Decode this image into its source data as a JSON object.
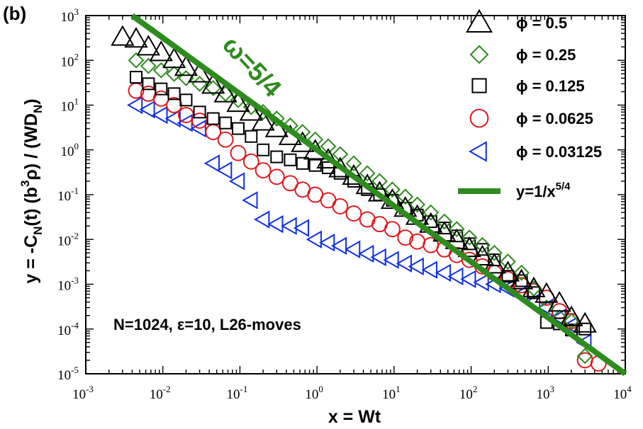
{
  "chart_data": {
    "type": "scatter",
    "panel_label": "(b)",
    "xlabel": "x = Wt",
    "ylabel_parts": [
      "y = -C",
      "N",
      "(t) (b",
      "3",
      "ρ) / (WD",
      "N",
      ")"
    ],
    "xscale": "log",
    "yscale": "log",
    "xlim": [
      0.001,
      10000
    ],
    "ylim": [
      1e-05,
      1000
    ],
    "x_ticks": [
      {
        "value": 0.001,
        "base": "10",
        "exp": "-3"
      },
      {
        "value": 0.01,
        "base": "10",
        "exp": "-2"
      },
      {
        "value": 0.1,
        "base": "10",
        "exp": "-1"
      },
      {
        "value": 1,
        "base": "10",
        "exp": "0"
      },
      {
        "value": 10,
        "base": "10",
        "exp": "1"
      },
      {
        "value": 100,
        "base": "10",
        "exp": "2"
      },
      {
        "value": 1000,
        "base": "10",
        "exp": "3"
      },
      {
        "value": 10000,
        "base": "10",
        "exp": "4"
      }
    ],
    "y_ticks": [
      {
        "value": 1e-05,
        "base": "10",
        "exp": "-5"
      },
      {
        "value": 0.0001,
        "base": "10",
        "exp": "-4"
      },
      {
        "value": 0.001,
        "base": "10",
        "exp": "-3"
      },
      {
        "value": 0.01,
        "base": "10",
        "exp": "-2"
      },
      {
        "value": 0.1,
        "base": "10",
        "exp": "-1"
      },
      {
        "value": 1,
        "base": "10",
        "exp": "0"
      },
      {
        "value": 10,
        "base": "10",
        "exp": "1"
      },
      {
        "value": 100,
        "base": "10",
        "exp": "2"
      },
      {
        "value": 1000,
        "base": "10",
        "exp": "3"
      }
    ],
    "annotation": "N=1024, ε=10, L26-moves",
    "slope_label": "ω=5/4",
    "legend_position": "top-right",
    "series": [
      {
        "name": "ϕ = 0.5",
        "marker": "triangle-up",
        "color": "#000000",
        "x": [
          0.003,
          0.0045,
          0.0065,
          0.0095,
          0.014,
          0.02,
          0.03,
          0.045,
          0.065,
          0.095,
          0.14,
          0.2,
          0.3,
          0.45,
          0.65,
          0.95,
          1.4,
          2,
          3,
          4.5,
          6.5,
          9.5,
          14,
          20,
          30,
          45,
          65,
          95,
          140,
          200,
          300,
          450,
          650,
          950,
          1400,
          2000,
          3000
        ],
        "y": [
          330,
          300,
          200,
          150,
          105,
          70,
          50,
          28,
          18,
          11,
          7,
          4.2,
          3,
          2,
          1.4,
          0.95,
          0.6,
          0.38,
          0.26,
          0.16,
          0.11,
          0.075,
          0.05,
          0.033,
          0.022,
          0.014,
          0.0095,
          0.0063,
          0.0041,
          0.0027,
          0.0018,
          0.0012,
          0.0008,
          0.0006,
          0.00038,
          0.00018,
          0.00013
        ]
      },
      {
        "name": "ϕ = 0.25",
        "marker": "diamond",
        "color": "#2e8b1e",
        "x": [
          0.0045,
          0.0065,
          0.0095,
          0.014,
          0.02,
          0.03,
          0.045,
          0.065,
          0.095,
          0.14,
          0.2,
          0.3,
          0.45,
          0.65,
          0.95,
          1.4,
          2,
          3,
          4.5,
          6.5,
          9.5,
          14,
          20,
          30,
          45,
          65,
          95,
          140,
          200,
          300,
          450,
          650,
          950,
          1400,
          2000,
          3000
        ],
        "y": [
          100,
          75,
          60,
          50,
          40,
          30,
          24,
          18,
          13,
          9,
          7,
          5,
          3.5,
          2.5,
          1.7,
          1.2,
          0.8,
          0.5,
          0.3,
          0.2,
          0.13,
          0.09,
          0.06,
          0.04,
          0.025,
          0.017,
          0.011,
          0.0075,
          0.005,
          0.0032,
          0.0018,
          0.0008,
          0.0003,
          0.00018,
          0.00015,
          2.5e-05
        ]
      },
      {
        "name": "ϕ = 0.125",
        "marker": "square",
        "color": "#000000",
        "x": [
          0.0045,
          0.0065,
          0.0095,
          0.014,
          0.02,
          0.03,
          0.045,
          0.065,
          0.095,
          0.14,
          0.2,
          0.3,
          0.45,
          0.65,
          0.95,
          1.4,
          2,
          3,
          4.5,
          6.5,
          9.5,
          14,
          20,
          30,
          45,
          65,
          95,
          140,
          200,
          300,
          450,
          650,
          950,
          1400,
          2000,
          3000
        ],
        "y": [
          42,
          30,
          23,
          18,
          13,
          7,
          5,
          4,
          3,
          2,
          1,
          0.7,
          0.6,
          0.5,
          0.45,
          0.4,
          0.3,
          0.2,
          0.13,
          0.1,
          0.075,
          0.05,
          0.035,
          0.025,
          0.018,
          0.012,
          0.008,
          0.006,
          0.0035,
          0.0015,
          0.0012,
          0.00065,
          0.00014,
          0.00013,
          9.5e-05,
          0.0001
        ]
      },
      {
        "name": "ϕ = 0.0625",
        "marker": "circle",
        "color": "#e0191e",
        "x": [
          0.0045,
          0.0065,
          0.0095,
          0.014,
          0.02,
          0.03,
          0.045,
          0.065,
          0.095,
          0.14,
          0.2,
          0.3,
          0.45,
          0.65,
          0.95,
          1.4,
          2,
          3,
          4.5,
          6.5,
          9.5,
          14,
          20,
          30,
          45,
          65,
          95,
          140,
          200,
          300,
          450,
          650,
          950,
          1400,
          2000,
          3000,
          4500
        ],
        "y": [
          21,
          18,
          14,
          10,
          6,
          4.5,
          2.5,
          1.7,
          0.85,
          0.55,
          0.35,
          0.25,
          0.18,
          0.13,
          0.1,
          0.075,
          0.055,
          0.038,
          0.028,
          0.022,
          0.017,
          0.011,
          0.009,
          0.0075,
          0.006,
          0.0045,
          0.0035,
          0.0025,
          0.0018,
          0.0013,
          0.00095,
          0.0007,
          0.0005,
          0.00025,
          0.00015,
          2e-05,
          1.7e-05
        ]
      },
      {
        "name": "ϕ = 0.03125",
        "marker": "triangle-left",
        "color": "#1030e0",
        "x": [
          0.0045,
          0.0065,
          0.0095,
          0.014,
          0.02,
          0.03,
          0.045,
          0.065,
          0.095,
          0.14,
          0.2,
          0.3,
          0.45,
          0.65,
          0.95,
          1.4,
          2,
          3,
          4.5,
          6.5,
          9.5,
          14,
          20,
          30,
          45,
          65,
          95,
          140,
          200,
          300,
          450,
          650,
          950,
          1400,
          2000,
          3000
        ],
        "y": [
          10,
          8,
          6,
          5,
          4,
          3,
          0.5,
          0.35,
          0.2,
          0.075,
          0.028,
          0.022,
          0.02,
          0.018,
          0.01,
          0.0085,
          0.0072,
          0.006,
          0.0048,
          0.004,
          0.0035,
          0.0029,
          0.0025,
          0.0021,
          0.0018,
          0.0015,
          0.0013,
          0.0011,
          0.001,
          0.0008,
          0.0006,
          0.0004,
          0.0003,
          0.00018,
          0.00012,
          5e-05
        ]
      },
      {
        "name": "y=1/x",
        "name_sup": "5/4",
        "marker": "line",
        "color": "#2e8b1e",
        "x": [
          0.004,
          10000
        ],
        "y": [
          1000,
          1e-05
        ]
      }
    ]
  }
}
